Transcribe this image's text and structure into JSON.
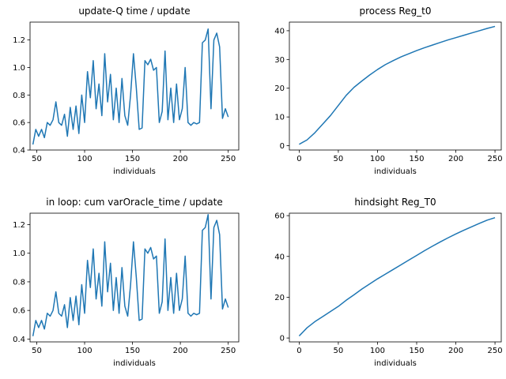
{
  "chart_data": [
    {
      "type": "line",
      "title": "update-Q time / update",
      "xlabel": "individuals",
      "color": "#1f77b4",
      "x": [
        46,
        49,
        52,
        55,
        58,
        61,
        64,
        67,
        70,
        73,
        76,
        79,
        82,
        85,
        88,
        91,
        94,
        97,
        100,
        103,
        106,
        109,
        112,
        115,
        118,
        121,
        124,
        127,
        130,
        133,
        136,
        139,
        142,
        145,
        148,
        151,
        154,
        157,
        160,
        163,
        166,
        169,
        172,
        175,
        178,
        181,
        184,
        187,
        190,
        193,
        196,
        199,
        202,
        205,
        208,
        211,
        214,
        217,
        220,
        223,
        226,
        229,
        232,
        235,
        238,
        241,
        244,
        247,
        250
      ],
      "values": [
        0.44,
        0.55,
        0.5,
        0.55,
        0.49,
        0.6,
        0.58,
        0.62,
        0.75,
        0.6,
        0.58,
        0.66,
        0.5,
        0.71,
        0.55,
        0.72,
        0.52,
        0.8,
        0.6,
        0.97,
        0.78,
        1.05,
        0.7,
        0.88,
        0.65,
        1.1,
        0.75,
        0.95,
        0.62,
        0.85,
        0.6,
        0.92,
        0.65,
        0.58,
        0.8,
        1.1,
        0.85,
        0.55,
        0.56,
        1.05,
        1.02,
        1.06,
        0.98,
        1.0,
        0.6,
        0.68,
        1.12,
        0.62,
        0.85,
        0.6,
        0.88,
        0.62,
        0.7,
        1.0,
        0.6,
        0.58,
        0.6,
        0.59,
        0.6,
        1.18,
        1.2,
        1.28,
        0.7,
        1.2,
        1.25,
        1.15,
        0.63,
        0.7,
        0.64
      ],
      "xlim": [
        43,
        261
      ],
      "ylim": [
        0.4,
        1.33
      ],
      "xticks": [
        50,
        100,
        150,
        200,
        250
      ],
      "yticks": [
        0.4,
        0.6,
        0.8,
        {
          "value": 1,
          "label": "1.0"
        },
        1.2
      ]
    },
    {
      "type": "line",
      "title": "process Reg_t0",
      "xlabel": "individuals",
      "color": "#1f77b4",
      "x": [
        0,
        10,
        20,
        30,
        40,
        50,
        60,
        70,
        80,
        90,
        100,
        110,
        120,
        130,
        140,
        150,
        160,
        170,
        180,
        190,
        200,
        210,
        220,
        230,
        240,
        250
      ],
      "values": [
        0.5,
        2,
        4.5,
        7.5,
        10.5,
        14,
        17.5,
        20.3,
        22.5,
        24.6,
        26.5,
        28.2,
        29.6,
        30.9,
        32,
        33.1,
        34.1,
        35,
        35.9,
        36.8,
        37.6,
        38.4,
        39.2,
        40,
        40.8,
        41.5
      ],
      "xlim": [
        -12.5,
        258
      ],
      "ylim": [
        -1.5,
        43
      ],
      "xticks": [
        0,
        50,
        100,
        150,
        200,
        250
      ],
      "yticks": [
        0,
        10,
        20,
        30,
        40
      ]
    },
    {
      "type": "line",
      "title": "in loop: cum varOracle_time / update",
      "xlabel": "individuals",
      "color": "#1f77b4",
      "x": [
        46,
        49,
        52,
        55,
        58,
        61,
        64,
        67,
        70,
        73,
        76,
        79,
        82,
        85,
        88,
        91,
        94,
        97,
        100,
        103,
        106,
        109,
        112,
        115,
        118,
        121,
        124,
        127,
        130,
        133,
        136,
        139,
        142,
        145,
        148,
        151,
        154,
        157,
        160,
        163,
        166,
        169,
        172,
        175,
        178,
        181,
        184,
        187,
        190,
        193,
        196,
        199,
        202,
        205,
        208,
        211,
        214,
        217,
        220,
        223,
        226,
        229,
        232,
        235,
        238,
        241,
        244,
        247,
        250
      ],
      "values": [
        0.42,
        0.53,
        0.48,
        0.53,
        0.47,
        0.58,
        0.56,
        0.6,
        0.73,
        0.58,
        0.56,
        0.64,
        0.48,
        0.69,
        0.53,
        0.7,
        0.5,
        0.78,
        0.58,
        0.95,
        0.76,
        1.03,
        0.68,
        0.86,
        0.63,
        1.08,
        0.73,
        0.93,
        0.6,
        0.83,
        0.58,
        0.9,
        0.63,
        0.56,
        0.78,
        1.08,
        0.83,
        0.53,
        0.54,
        1.03,
        1.0,
        1.04,
        0.96,
        0.98,
        0.58,
        0.66,
        1.1,
        0.6,
        0.83,
        0.58,
        0.86,
        0.6,
        0.68,
        0.98,
        0.58,
        0.56,
        0.58,
        0.57,
        0.58,
        1.16,
        1.18,
        1.27,
        0.68,
        1.18,
        1.23,
        1.13,
        0.61,
        0.68,
        0.62
      ],
      "xlim": [
        43,
        261
      ],
      "ylim": [
        0.38,
        1.28
      ],
      "xticks": [
        50,
        100,
        150,
        200,
        250
      ],
      "yticks": [
        0.4,
        0.6,
        0.8,
        {
          "value": 1,
          "label": "1.0"
        },
        1.2
      ]
    },
    {
      "type": "line",
      "title": "hindsight Reg_T0",
      "xlabel": "individuals",
      "color": "#1f77b4",
      "x": [
        0,
        10,
        20,
        30,
        40,
        50,
        60,
        70,
        80,
        90,
        100,
        110,
        120,
        130,
        140,
        150,
        160,
        170,
        180,
        190,
        200,
        210,
        220,
        230,
        240,
        250
      ],
      "values": [
        1,
        5,
        8,
        10.5,
        13,
        15.5,
        18.5,
        21.2,
        24,
        26.5,
        29,
        31.3,
        33.6,
        35.9,
        38.2,
        40.5,
        42.8,
        45,
        47.1,
        49.1,
        51,
        52.8,
        54.5,
        56.2,
        57.8,
        59
      ],
      "xlim": [
        -12.5,
        258
      ],
      "ylim": [
        -1.9,
        61.2
      ],
      "xticks": [
        0,
        50,
        100,
        150,
        200,
        250
      ],
      "yticks": [
        0,
        20,
        40,
        60
      ]
    }
  ]
}
